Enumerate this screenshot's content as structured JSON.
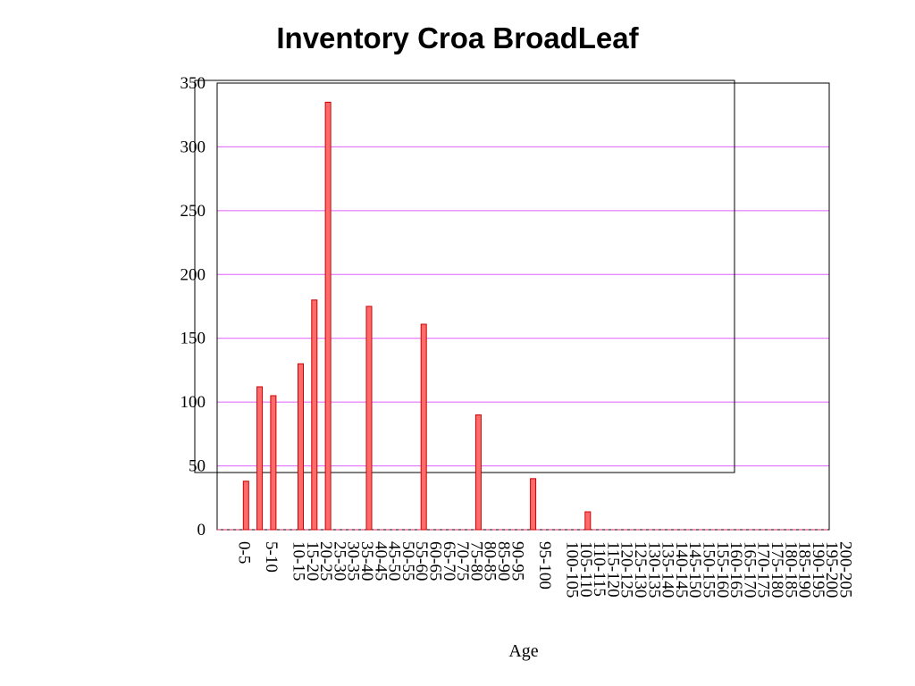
{
  "chart_data": {
    "type": "bar",
    "title": "Inventory Croa BroadLeaf",
    "xlabel": "Age",
    "ylabel": "",
    "ylim": [
      0,
      350
    ],
    "yticks": [
      0,
      50,
      100,
      150,
      200,
      250,
      300,
      350
    ],
    "grid": true,
    "legend": "none",
    "colors": {
      "bar_fill": "#ff6b6b",
      "bar_stroke": "#cc0000",
      "grid": "#e060ff",
      "axis": "#000000"
    },
    "categories": [
      "",
      "0-5",
      "",
      "5-10",
      "",
      "10-15",
      "15-20",
      "20-25",
      "25-30",
      "30-35",
      "35-40",
      "40-45",
      "45-50",
      "50-55",
      "55-60",
      "60-65",
      "65-70",
      "70-75",
      "75-80",
      "80-85",
      "85-90",
      "90-95",
      "",
      "95-100",
      "",
      "100-105",
      "105-110",
      "110-115",
      "115-120",
      "120-125",
      "125-130",
      "130-135",
      "135-140",
      "140-145",
      "145-150",
      "150-155",
      "155-160",
      "160-165",
      "165-170",
      "170-175",
      "175-180",
      "180-185",
      "185-190",
      "190-195",
      "195-200",
      "200-205"
    ],
    "values": [
      0,
      38,
      112,
      105,
      0,
      130,
      180,
      335,
      0,
      0,
      175,
      0,
      0,
      0,
      161,
      0,
      0,
      0,
      90,
      0,
      0,
      0,
      40,
      0,
      0,
      0,
      14,
      0,
      0,
      0,
      0,
      0,
      0,
      0,
      0,
      0,
      0,
      0,
      0,
      0,
      0,
      0,
      0,
      0,
      0,
      0
    ]
  }
}
